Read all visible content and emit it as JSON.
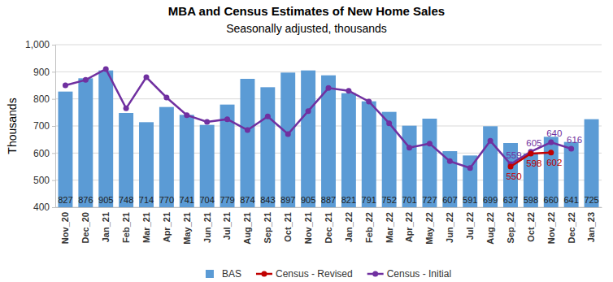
{
  "chart_data": {
    "type": "bar",
    "title": "MBA and Census Estimates of New Home Sales",
    "subtitle": "Seasonally adjusted, thousands",
    "ylabel": "Thousands",
    "categories": [
      "Nov_20",
      "Dec_20",
      "Jan_21",
      "Feb_21",
      "Mar_21",
      "Apr_21",
      "May_21",
      "Jun_21",
      "Jul_21",
      "Aug_21",
      "Sep_21",
      "Oct_21",
      "Nov_21",
      "Dec_21",
      "Jan_22",
      "Feb_22",
      "Mar_22",
      "Apr_22",
      "May_22",
      "Jun_22",
      "Jul_22",
      "Aug_22",
      "Sep_22",
      "Oct_22",
      "Nov_22",
      "Dec_22",
      "Jan_23"
    ],
    "series": [
      {
        "name": "BAS",
        "type": "bar",
        "color": "#5b9bd5",
        "data_labels": true,
        "values": [
          827,
          876,
          905,
          748,
          714,
          770,
          741,
          704,
          779,
          874,
          843,
          897,
          905,
          887,
          821,
          791,
          752,
          701,
          727,
          607,
          591,
          699,
          637,
          598,
          660,
          641,
          725
        ]
      },
      {
        "name": "Census - Revised",
        "type": "line",
        "color": "#c00000",
        "marker": "circle",
        "line_style": "solid",
        "data_labels": true,
        "values": [
          null,
          null,
          null,
          null,
          null,
          null,
          null,
          null,
          null,
          null,
          null,
          null,
          null,
          null,
          null,
          null,
          null,
          null,
          null,
          null,
          null,
          null,
          550,
          598,
          602,
          null,
          null
        ],
        "value_labels": [
          null,
          null,
          null,
          null,
          null,
          null,
          null,
          null,
          null,
          null,
          null,
          null,
          null,
          null,
          null,
          null,
          null,
          null,
          null,
          null,
          null,
          null,
          "550",
          "598",
          "602",
          null,
          null
        ]
      },
      {
        "name": "Census - Initial",
        "type": "line",
        "color": "#7030a0",
        "marker": "circle",
        "line_style": "solid",
        "data_labels": true,
        "values": [
          850,
          870,
          910,
          765,
          880,
          805,
          740,
          715,
          725,
          685,
          735,
          670,
          755,
          840,
          830,
          790,
          710,
          620,
          635,
          570,
          545,
          645,
          559,
          605,
          640,
          616,
          null
        ],
        "value_labels": [
          null,
          null,
          null,
          null,
          null,
          null,
          null,
          null,
          null,
          null,
          null,
          null,
          null,
          null,
          null,
          null,
          null,
          null,
          null,
          null,
          null,
          null,
          "559",
          "605",
          "640",
          "616",
          null
        ]
      }
    ],
    "ylim": [
      400,
      1000
    ],
    "yticks": [
      400,
      500,
      600,
      700,
      800,
      900,
      {
        "value": 1000,
        "label": "1,000"
      }
    ],
    "grid": true,
    "legend": "bottom"
  }
}
